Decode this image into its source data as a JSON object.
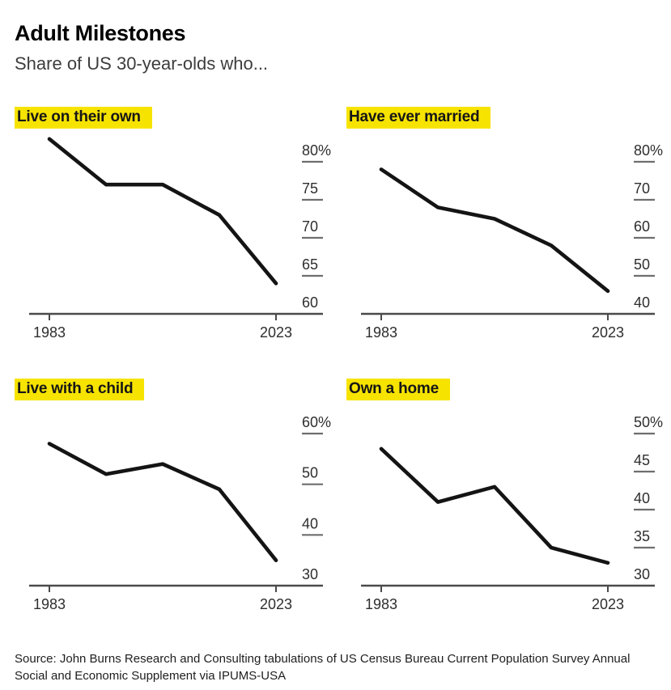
{
  "header": {
    "title": "Adult Milestones",
    "subtitle": "Share of US 30-year-olds who..."
  },
  "footer": {
    "source": "Source: John Burns Research and Consulting tabulations of US Census Bureau Current Population Survey Annual Social and Economic Supplement via IPUMS-USA"
  },
  "colors": {
    "highlight": "#f7e300",
    "line": "#141414",
    "axis": "#4a4a4a",
    "tick_dash": "#6e6e6e",
    "label_text": "#2e2e2e"
  },
  "chart_data": [
    {
      "type": "line",
      "title": "Live on their own",
      "x": [
        1983,
        1993,
        2003,
        2013,
        2023
      ],
      "values": [
        83,
        77,
        77,
        73,
        64
      ],
      "ylim": [
        60,
        80
      ],
      "yticks": [
        80,
        75,
        70,
        65,
        60
      ],
      "ytick_labels": [
        "80%",
        "75",
        "70",
        "65",
        "60"
      ],
      "xtick_labels": [
        "1983",
        "2023"
      ],
      "xlabel": "",
      "ylabel": "",
      "grid": false,
      "legend": "none",
      "y_axis_side": "right"
    },
    {
      "type": "line",
      "title": "Have ever married",
      "x": [
        1983,
        1993,
        2003,
        2013,
        2023
      ],
      "values": [
        78,
        68,
        65,
        58,
        46
      ],
      "ylim": [
        40,
        80
      ],
      "yticks": [
        80,
        70,
        60,
        50,
        40
      ],
      "ytick_labels": [
        "80%",
        "70",
        "60",
        "50",
        "40"
      ],
      "xtick_labels": [
        "1983",
        "2023"
      ],
      "xlabel": "",
      "ylabel": "",
      "grid": false,
      "legend": "none",
      "y_axis_side": "right"
    },
    {
      "type": "line",
      "title": "Live with a child",
      "x": [
        1983,
        1993,
        2003,
        2013,
        2023
      ],
      "values": [
        58,
        52,
        54,
        49,
        35
      ],
      "ylim": [
        30,
        60
      ],
      "yticks": [
        60,
        50,
        40,
        30
      ],
      "ytick_labels": [
        "60%",
        "50",
        "40",
        "30"
      ],
      "xtick_labels": [
        "1983",
        "2023"
      ],
      "xlabel": "",
      "ylabel": "",
      "grid": false,
      "legend": "none",
      "y_axis_side": "right"
    },
    {
      "type": "line",
      "title": "Own a home",
      "x": [
        1983,
        1993,
        2003,
        2013,
        2023
      ],
      "values": [
        48,
        41,
        43,
        35,
        33
      ],
      "ylim": [
        30,
        50
      ],
      "yticks": [
        50,
        45,
        40,
        35,
        30
      ],
      "ytick_labels": [
        "50%",
        "45",
        "40",
        "35",
        "30"
      ],
      "xtick_labels": [
        "1983",
        "2023"
      ],
      "xlabel": "",
      "ylabel": "",
      "grid": false,
      "legend": "none",
      "y_axis_side": "right"
    }
  ]
}
